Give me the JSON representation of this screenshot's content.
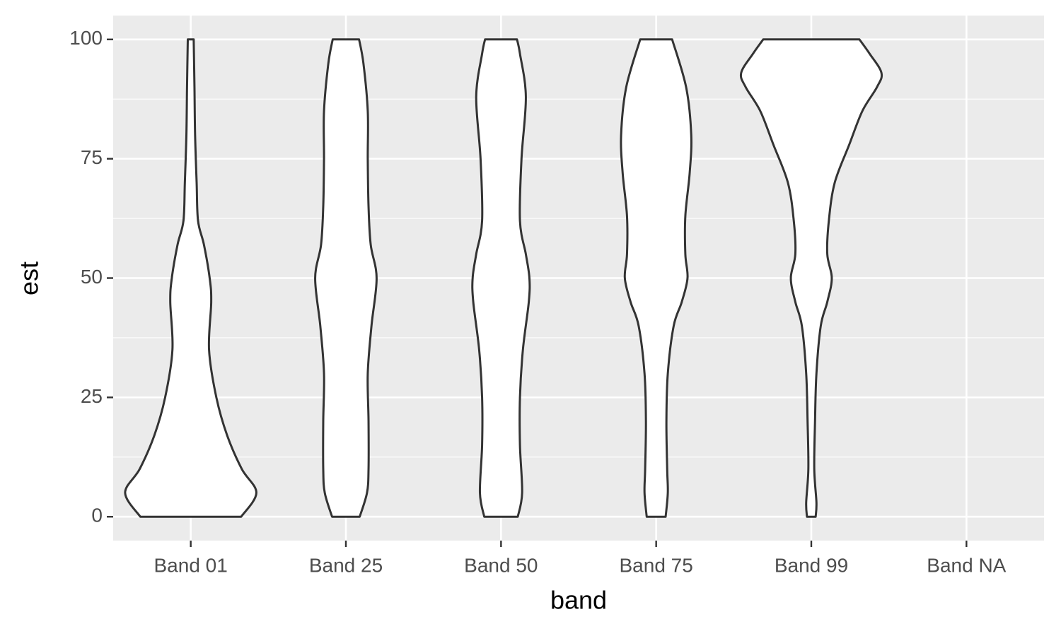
{
  "chart_data": {
    "type": "violin",
    "x_label": "band",
    "y_label": "est",
    "categories": [
      "Band 01",
      "Band 25",
      "Band 50",
      "Band 75",
      "Band 99",
      "Band NA"
    ],
    "ylim": [
      -5,
      105
    ],
    "yticks": [
      0,
      25,
      50,
      75,
      100
    ],
    "grid": true,
    "fill": "#ffffff",
    "stroke": "#333333",
    "violins": [
      {
        "y": [
          0,
          5,
          10,
          17,
          25,
          35,
          45,
          50,
          57,
          62,
          70,
          80,
          90,
          100
        ],
        "width": [
          0.325,
          0.423,
          0.329,
          0.235,
          0.165,
          0.118,
          0.132,
          0.122,
          0.085,
          0.047,
          0.038,
          0.028,
          0.024,
          0.019
        ]
      },
      {
        "y": [
          0,
          5,
          10,
          20,
          30,
          40,
          50,
          57,
          65,
          75,
          85,
          95,
          100
        ],
        "width": [
          0.089,
          0.136,
          0.146,
          0.146,
          0.141,
          0.165,
          0.198,
          0.16,
          0.146,
          0.141,
          0.141,
          0.113,
          0.085
        ]
      },
      {
        "y": [
          0,
          5,
          15,
          25,
          35,
          45,
          50,
          55,
          62,
          75,
          88,
          97,
          100
        ],
        "width": [
          0.108,
          0.136,
          0.122,
          0.122,
          0.141,
          0.179,
          0.183,
          0.16,
          0.122,
          0.132,
          0.16,
          0.122,
          0.103
        ]
      },
      {
        "y": [
          0,
          5,
          10,
          20,
          30,
          40,
          45,
          50,
          55,
          63,
          72,
          80,
          90,
          100
        ],
        "width": [
          0.061,
          0.075,
          0.071,
          0.066,
          0.075,
          0.113,
          0.165,
          0.202,
          0.188,
          0.188,
          0.216,
          0.226,
          0.193,
          0.103
        ]
      },
      {
        "y": [
          0,
          3,
          10,
          20,
          30,
          40,
          45,
          50,
          55,
          62,
          70,
          78,
          85,
          90,
          93,
          97,
          100
        ],
        "width": [
          0.028,
          0.033,
          0.019,
          0.024,
          0.033,
          0.061,
          0.103,
          0.132,
          0.103,
          0.113,
          0.151,
          0.245,
          0.329,
          0.423,
          0.452,
          0.376,
          0.31
        ]
      },
      null
    ]
  }
}
